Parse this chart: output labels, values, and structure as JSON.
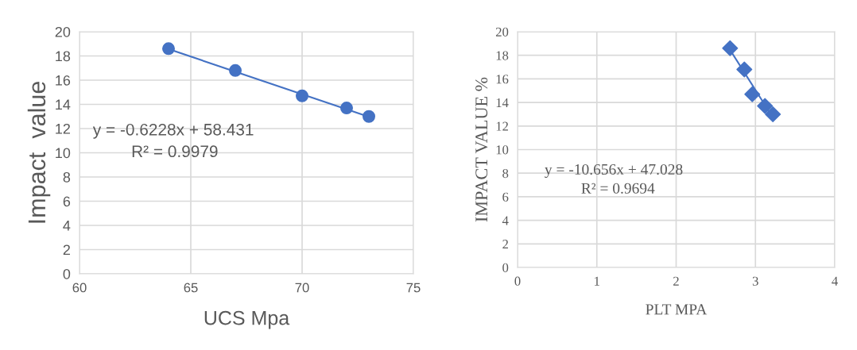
{
  "chart_data": [
    {
      "type": "scatter",
      "xlabel": "UCS Mpa",
      "ylabel": "Impact  value",
      "xlim": [
        60,
        75
      ],
      "xticks": [
        60,
        65,
        70,
        75
      ],
      "ylim": [
        0,
        20
      ],
      "yticks": [
        0,
        2,
        4,
        6,
        8,
        10,
        12,
        14,
        16,
        18,
        20
      ],
      "grid": true,
      "legend": false,
      "annotations": [
        "y = -0.6228x + 58.431",
        "R² = 0.9979"
      ],
      "series": [
        {
          "x": [
            64,
            67,
            70,
            72,
            73
          ],
          "values": [
            18.6,
            16.8,
            14.7,
            13.7,
            13.0
          ],
          "color": "#4472c4",
          "marker": "circle"
        },
        {
          "type": "line",
          "x": [
            64,
            73
          ],
          "values": [
            18.57,
            12.97
          ],
          "color": "#4472c4"
        }
      ]
    },
    {
      "type": "scatter",
      "xlabel": "PLT MPA",
      "ylabel": "IMPACT VALUE %",
      "xlim": [
        0,
        4
      ],
      "xticks": [
        0,
        1,
        2,
        3,
        4
      ],
      "ylim": [
        0,
        20
      ],
      "yticks": [
        0,
        2,
        4,
        6,
        8,
        10,
        12,
        14,
        16,
        18,
        20
      ],
      "grid": true,
      "legend": false,
      "annotations": [
        "y = -10.656x + 47.028",
        "R² = 0.9694"
      ],
      "series": [
        {
          "x": [
            2.68,
            2.86,
            2.96,
            3.12,
            3.22
          ],
          "values": [
            18.6,
            16.8,
            14.7,
            13.7,
            13.0
          ],
          "color": "#4472c4",
          "marker": "diamond"
        },
        {
          "type": "line",
          "x": [
            2.68,
            3.22
          ],
          "values": [
            18.47,
            12.72
          ],
          "color": "#4472c4"
        }
      ]
    }
  ]
}
